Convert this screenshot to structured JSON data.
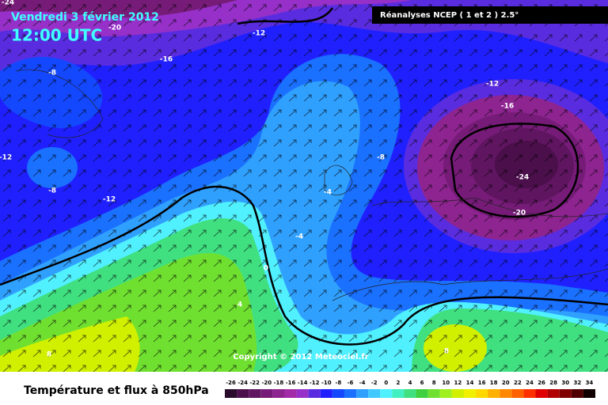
{
  "header": {
    "date": "Vendredi 3 février 2012",
    "time": "12:00 UTC",
    "source": "Réanalyses NCEP ( 1 et 2 ) 2.5°"
  },
  "map": {
    "contour_labels": [
      -24,
      -20,
      -12,
      -16,
      -8,
      -12,
      -16,
      -12,
      -8,
      -12,
      -8,
      -4,
      -24,
      -20,
      -4,
      0,
      4,
      8,
      8
    ],
    "copyright": "Copyright © 2012 Meteociel.fr"
  },
  "legend": {
    "title": "Température et flux à 850hPa",
    "ticks": [
      -26,
      -24,
      -22,
      -20,
      -18,
      -16,
      -14,
      -12,
      -10,
      -8,
      -6,
      -4,
      -2,
      0,
      2,
      4,
      6,
      8,
      10,
      12,
      14,
      16,
      18,
      20,
      22,
      24,
      26,
      28,
      30,
      32,
      34
    ],
    "colors": [
      "#2b0b2b",
      "#4b0f4b",
      "#5f1560",
      "#761c78",
      "#8e2490",
      "#a22ca8",
      "#9630c8",
      "#5a2ce0",
      "#2020ff",
      "#1448ff",
      "#1a70ff",
      "#30a0ff",
      "#40c8ff",
      "#50f0ff",
      "#40f0c0",
      "#40e080",
      "#40d040",
      "#70e030",
      "#a0f020",
      "#d0f000",
      "#f0f000",
      "#ffd800",
      "#ffb000",
      "#ff8800",
      "#ff6000",
      "#ff3000",
      "#e00000",
      "#b00000",
      "#800000",
      "#500000",
      "#100000"
    ]
  }
}
